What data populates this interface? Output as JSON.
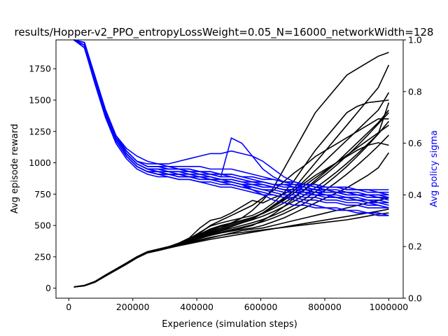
{
  "chart_data": {
    "type": "line",
    "title": "results/Hopper-v2_PPO_entropyLossWeight=0.05_N=16000_networkWidth=128",
    "xlabel": "Experience (simulation steps)",
    "ylabel_left": "Avg episode reward",
    "ylabel_right": "Avg policy sigma",
    "xlim": [
      -40000,
      1045000
    ],
    "ylim_left": [
      -80,
      1980
    ],
    "ylim_right": [
      0.0,
      1.0
    ],
    "x_ticks": [
      0,
      200000,
      400000,
      600000,
      800000,
      1000000
    ],
    "y_ticks_left": [
      0,
      250,
      500,
      750,
      1000,
      1250,
      1500,
      1750
    ],
    "y_ticks_right": [
      0.0,
      0.2,
      0.4,
      0.6,
      0.8,
      1.0
    ],
    "grid": false,
    "colors": {
      "reward": "#000000",
      "sigma": "#0000ff",
      "axis": "#000000",
      "right_axis_label": "#0000ff"
    },
    "reward_series": [
      {
        "y": [
          10,
          20,
          50,
          100,
          150,
          200,
          250,
          290,
          310,
          330,
          360,
          400,
          480,
          540,
          560,
          600,
          650,
          700,
          680,
          720,
          750,
          800,
          900,
          1000,
          1100,
          1200,
          1300,
          1400,
          1500,
          1600,
          1780
        ]
      },
      {
        "y": [
          10,
          20,
          48,
          98,
          145,
          195,
          245,
          285,
          305,
          325,
          345,
          380,
          420,
          460,
          480,
          520,
          560,
          620,
          700,
          800,
          950,
          1100,
          1250,
          1400,
          1500,
          1600,
          1700,
          1750,
          1800,
          1850,
          1880
        ]
      },
      {
        "y": [
          10,
          21,
          52,
          102,
          150,
          198,
          248,
          288,
          308,
          328,
          350,
          390,
          440,
          500,
          540,
          580,
          620,
          660,
          720,
          780,
          850,
          920,
          980,
          1050,
          1100,
          1150,
          1200,
          1250,
          1300,
          1350,
          1350
        ]
      },
      {
        "y": [
          10,
          20,
          50,
          100,
          148,
          197,
          247,
          287,
          307,
          327,
          350,
          380,
          410,
          440,
          460,
          490,
          520,
          550,
          600,
          660,
          720,
          780,
          840,
          900,
          950,
          1000,
          1050,
          1100,
          1140,
          1160,
          1140
        ]
      },
      {
        "y": [
          10,
          22,
          53,
          104,
          152,
          200,
          250,
          290,
          310,
          330,
          352,
          385,
          420,
          455,
          480,
          505,
          530,
          560,
          600,
          650,
          700,
          760,
          820,
          880,
          940,
          1000,
          1060,
          1120,
          1180,
          1240,
          1300
        ]
      },
      {
        "y": [
          10,
          20,
          49,
          99,
          147,
          196,
          246,
          286,
          306,
          326,
          348,
          375,
          400,
          420,
          440,
          455,
          470,
          480,
          500,
          530,
          560,
          600,
          640,
          680,
          720,
          760,
          800,
          850,
          900,
          960,
          1080
        ]
      },
      {
        "y": [
          10,
          19,
          47,
          96,
          144,
          192,
          242,
          282,
          300,
          320,
          340,
          360,
          380,
          400,
          420,
          440,
          460,
          470,
          480,
          500,
          520,
          540,
          560,
          580,
          600,
          620,
          640,
          660,
          680,
          700,
          720
        ]
      },
      {
        "y": [
          10,
          21,
          51,
          101,
          149,
          199,
          249,
          289,
          309,
          329,
          345,
          365,
          385,
          405,
          420,
          435,
          445,
          455,
          465,
          475,
          485,
          495,
          505,
          515,
          525,
          535,
          545,
          560,
          575,
          590,
          600
        ]
      },
      {
        "y": [
          10,
          20,
          50,
          100,
          150,
          200,
          250,
          290,
          310,
          330,
          355,
          395,
          445,
          495,
          520,
          540,
          560,
          580,
          620,
          680,
          760,
          860,
          980,
          1100,
          1200,
          1300,
          1400,
          1450,
          1480,
          1490,
          1500
        ]
      },
      {
        "y": [
          10,
          20,
          50,
          100,
          146,
          194,
          244,
          284,
          304,
          324,
          346,
          370,
          395,
          420,
          440,
          460,
          480,
          500,
          540,
          590,
          650,
          720,
          790,
          860,
          930,
          1000,
          1080,
          1160,
          1240,
          1320,
          1420
        ]
      },
      {
        "y": [
          10,
          22,
          54,
          105,
          153,
          201,
          251,
          291,
          311,
          331,
          355,
          392,
          432,
          472,
          500,
          520,
          540,
          560,
          600,
          650,
          710,
          780,
          860,
          940,
          1020,
          1100,
          1180,
          1260,
          1340,
          1420,
          1560
        ]
      },
      {
        "y": [
          10,
          19,
          48,
          97,
          143,
          191,
          241,
          281,
          299,
          319,
          338,
          355,
          372,
          389,
          404,
          418,
          432,
          446,
          460,
          474,
          488,
          502,
          516,
          530,
          544,
          558,
          572,
          586,
          600,
          614,
          630
        ]
      },
      {
        "y": [
          10,
          21,
          50,
          101,
          151,
          199,
          249,
          289,
          309,
          329,
          351,
          382,
          414,
          446,
          470,
          495,
          520,
          545,
          575,
          610,
          650,
          695,
          745,
          800,
          860,
          925,
          995,
          1070,
          1150,
          1230,
          1480
        ]
      },
      {
        "y": [
          10,
          20,
          51,
          100,
          149,
          198,
          248,
          288,
          308,
          328,
          352,
          388,
          426,
          466,
          492,
          515,
          540,
          565,
          595,
          635,
          680,
          730,
          785,
          845,
          910,
          980,
          1055,
          1135,
          1220,
          1310,
          1400
        ]
      },
      {
        "y": [
          10,
          20,
          49,
          99,
          147,
          197,
          247,
          287,
          307,
          327,
          347,
          372,
          398,
          424,
          446,
          466,
          486,
          506,
          530,
          560,
          595,
          635,
          680,
          730,
          785,
          845,
          910,
          980,
          1055,
          1135,
          1220
        ]
      },
      {
        "y": [
          10,
          21,
          52,
          103,
          151,
          199,
          249,
          289,
          309,
          329,
          349,
          376,
          404,
          432,
          456,
          478,
          500,
          522,
          548,
          580,
          618,
          662,
          712,
          768,
          830,
          898,
          972,
          1052,
          1138,
          1230,
          1330
        ]
      }
    ],
    "sigma_series": [
      {
        "y": [
          1.0,
          0.98,
          0.85,
          0.72,
          0.62,
          0.56,
          0.52,
          0.5,
          0.5,
          0.49,
          0.49,
          0.48,
          0.48,
          0.47,
          0.46,
          0.46,
          0.45,
          0.44,
          0.44,
          0.43,
          0.42,
          0.42,
          0.41,
          0.4,
          0.4,
          0.39,
          0.38,
          0.38,
          0.37,
          0.36,
          0.35
        ]
      },
      {
        "y": [
          1.0,
          0.97,
          0.84,
          0.71,
          0.61,
          0.55,
          0.51,
          0.49,
          0.48,
          0.48,
          0.47,
          0.47,
          0.46,
          0.46,
          0.45,
          0.45,
          0.44,
          0.44,
          0.43,
          0.43,
          0.42,
          0.42,
          0.41,
          0.41,
          0.4,
          0.4,
          0.39,
          0.39,
          0.38,
          0.38,
          0.37
        ]
      },
      {
        "y": [
          1.0,
          0.99,
          0.86,
          0.73,
          0.63,
          0.57,
          0.53,
          0.51,
          0.51,
          0.5,
          0.5,
          0.49,
          0.49,
          0.48,
          0.47,
          0.47,
          0.46,
          0.45,
          0.45,
          0.44,
          0.44,
          0.43,
          0.43,
          0.42,
          0.42,
          0.41,
          0.41,
          0.4,
          0.4,
          0.39,
          0.39
        ]
      },
      {
        "y": [
          1.0,
          0.98,
          0.85,
          0.72,
          0.62,
          0.57,
          0.53,
          0.52,
          0.52,
          0.52,
          0.53,
          0.54,
          0.55,
          0.56,
          0.56,
          0.57,
          0.56,
          0.55,
          0.53,
          0.5,
          0.47,
          0.45,
          0.44,
          0.43,
          0.42,
          0.42,
          0.41,
          0.41,
          0.4,
          0.4,
          0.4
        ]
      },
      {
        "y": [
          1.0,
          0.97,
          0.83,
          0.7,
          0.6,
          0.54,
          0.5,
          0.48,
          0.47,
          0.47,
          0.46,
          0.46,
          0.45,
          0.45,
          0.44,
          0.44,
          0.43,
          0.43,
          0.42,
          0.42,
          0.41,
          0.41,
          0.4,
          0.4,
          0.39,
          0.39,
          0.38,
          0.38,
          0.37,
          0.37,
          0.36
        ]
      },
      {
        "y": [
          1.0,
          0.98,
          0.85,
          0.72,
          0.62,
          0.56,
          0.52,
          0.5,
          0.5,
          0.49,
          0.49,
          0.49,
          0.48,
          0.48,
          0.47,
          0.62,
          0.6,
          0.55,
          0.5,
          0.47,
          0.45,
          0.44,
          0.43,
          0.42,
          0.42,
          0.41,
          0.41,
          0.4,
          0.4,
          0.4,
          0.39
        ]
      },
      {
        "y": [
          1.0,
          0.99,
          0.86,
          0.73,
          0.63,
          0.58,
          0.55,
          0.53,
          0.52,
          0.51,
          0.5,
          0.5,
          0.49,
          0.49,
          0.48,
          0.48,
          0.47,
          0.47,
          0.46,
          0.46,
          0.45,
          0.45,
          0.44,
          0.44,
          0.43,
          0.43,
          0.42,
          0.42,
          0.41,
          0.41,
          0.4
        ]
      },
      {
        "y": [
          1.0,
          0.98,
          0.84,
          0.71,
          0.61,
          0.55,
          0.51,
          0.49,
          0.49,
          0.48,
          0.48,
          0.47,
          0.47,
          0.46,
          0.45,
          0.44,
          0.43,
          0.42,
          0.41,
          0.4,
          0.39,
          0.38,
          0.37,
          0.36,
          0.35,
          0.35,
          0.34,
          0.34,
          0.33,
          0.33,
          0.32
        ]
      },
      {
        "y": [
          1.0,
          0.97,
          0.84,
          0.71,
          0.61,
          0.55,
          0.51,
          0.49,
          0.48,
          0.48,
          0.47,
          0.47,
          0.46,
          0.46,
          0.45,
          0.45,
          0.44,
          0.44,
          0.43,
          0.43,
          0.42,
          0.42,
          0.42,
          0.41,
          0.41,
          0.41,
          0.4,
          0.4,
          0.4,
          0.39,
          0.39
        ]
      },
      {
        "y": [
          1.0,
          0.98,
          0.85,
          0.72,
          0.62,
          0.56,
          0.52,
          0.5,
          0.49,
          0.49,
          0.48,
          0.48,
          0.47,
          0.47,
          0.46,
          0.45,
          0.44,
          0.43,
          0.42,
          0.41,
          0.4,
          0.4,
          0.39,
          0.39,
          0.38,
          0.38,
          0.37,
          0.37,
          0.36,
          0.36,
          0.35
        ]
      },
      {
        "y": [
          1.0,
          0.99,
          0.86,
          0.72,
          0.62,
          0.56,
          0.52,
          0.5,
          0.5,
          0.5,
          0.5,
          0.49,
          0.49,
          0.48,
          0.48,
          0.47,
          0.46,
          0.45,
          0.44,
          0.43,
          0.42,
          0.41,
          0.41,
          0.4,
          0.4,
          0.39,
          0.39,
          0.38,
          0.38,
          0.37,
          0.37
        ]
      },
      {
        "y": [
          1.0,
          0.97,
          0.84,
          0.71,
          0.61,
          0.55,
          0.51,
          0.49,
          0.48,
          0.47,
          0.46,
          0.46,
          0.45,
          0.44,
          0.43,
          0.43,
          0.42,
          0.41,
          0.4,
          0.4,
          0.39,
          0.39,
          0.38,
          0.38,
          0.37,
          0.37,
          0.36,
          0.36,
          0.35,
          0.35,
          0.35
        ]
      },
      {
        "y": [
          1.0,
          0.98,
          0.85,
          0.72,
          0.62,
          0.57,
          0.53,
          0.51,
          0.51,
          0.51,
          0.51,
          0.51,
          0.51,
          0.5,
          0.5,
          0.5,
          0.49,
          0.48,
          0.47,
          0.46,
          0.45,
          0.45,
          0.44,
          0.44,
          0.43,
          0.43,
          0.42,
          0.42,
          0.42,
          0.41,
          0.41
        ]
      },
      {
        "y": [
          1.0,
          0.98,
          0.85,
          0.72,
          0.62,
          0.56,
          0.52,
          0.5,
          0.49,
          0.48,
          0.48,
          0.47,
          0.47,
          0.46,
          0.46,
          0.46,
          0.45,
          0.45,
          0.45,
          0.44,
          0.44,
          0.44,
          0.44,
          0.43,
          0.43,
          0.43,
          0.43,
          0.42,
          0.42,
          0.42,
          0.42
        ]
      },
      {
        "y": [
          1.0,
          0.97,
          0.84,
          0.71,
          0.61,
          0.55,
          0.51,
          0.49,
          0.49,
          0.48,
          0.47,
          0.47,
          0.47,
          0.46,
          0.46,
          0.45,
          0.44,
          0.42,
          0.4,
          0.38,
          0.37,
          0.36,
          0.36,
          0.35,
          0.35,
          0.34,
          0.34,
          0.33,
          0.33,
          0.32,
          0.32
        ]
      },
      {
        "y": [
          1.0,
          0.99,
          0.86,
          0.73,
          0.63,
          0.57,
          0.53,
          0.51,
          0.51,
          0.5,
          0.5,
          0.5,
          0.49,
          0.49,
          0.48,
          0.48,
          0.47,
          0.46,
          0.45,
          0.44,
          0.43,
          0.43,
          0.42,
          0.42,
          0.41,
          0.41,
          0.4,
          0.4,
          0.39,
          0.39,
          0.38
        ]
      }
    ]
  }
}
